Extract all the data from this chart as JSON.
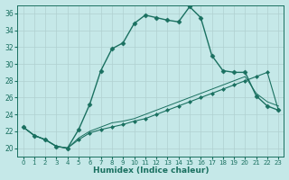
{
  "xlabel": "Humidex (Indice chaleur)",
  "background_color": "#c5e8e8",
  "grid_color": "#b0d0d0",
  "line_color": "#1a7060",
  "xlim": [
    -0.5,
    23.5
  ],
  "ylim": [
    19.0,
    37.0
  ],
  "yticks": [
    20,
    22,
    24,
    26,
    28,
    30,
    32,
    34,
    36
  ],
  "xticks": [
    0,
    1,
    2,
    3,
    4,
    5,
    6,
    7,
    8,
    9,
    10,
    11,
    12,
    13,
    14,
    15,
    16,
    17,
    18,
    19,
    20,
    21,
    22,
    23
  ],
  "series1_x": [
    0,
    1,
    2,
    3,
    4,
    5,
    6,
    7,
    8,
    9,
    10,
    11,
    12,
    13,
    14,
    15,
    16,
    17,
    18,
    19,
    20,
    21,
    22,
    23
  ],
  "series1_y": [
    22.5,
    21.5,
    21.0,
    20.2,
    20.0,
    22.2,
    25.2,
    29.2,
    31.8,
    32.5,
    34.8,
    35.8,
    35.5,
    35.2,
    35.0,
    36.8,
    35.5,
    31.0,
    29.2,
    29.0,
    29.0,
    26.2,
    25.0,
    24.5
  ],
  "series2_x": [
    0,
    1,
    2,
    3,
    4,
    5,
    6,
    7,
    8,
    9,
    10,
    11,
    12,
    13,
    14,
    15,
    16,
    17,
    18,
    19,
    20,
    21,
    22,
    23
  ],
  "series2_y": [
    22.5,
    21.5,
    21.0,
    20.2,
    20.0,
    21.0,
    21.8,
    22.2,
    22.5,
    22.8,
    23.2,
    23.5,
    24.0,
    24.5,
    25.0,
    25.5,
    26.0,
    26.5,
    27.0,
    27.5,
    28.0,
    28.5,
    29.0,
    24.5
  ],
  "series3_x": [
    0,
    1,
    2,
    3,
    4,
    5,
    6,
    7,
    8,
    9,
    10,
    11,
    12,
    13,
    14,
    15,
    16,
    17,
    18,
    19,
    20,
    21,
    22,
    23
  ],
  "series3_y": [
    22.5,
    21.5,
    21.0,
    20.2,
    20.0,
    21.2,
    22.0,
    22.5,
    23.0,
    23.2,
    23.5,
    24.0,
    24.5,
    25.0,
    25.5,
    26.0,
    26.5,
    27.0,
    27.5,
    28.0,
    28.5,
    26.5,
    25.5,
    25.0
  ]
}
